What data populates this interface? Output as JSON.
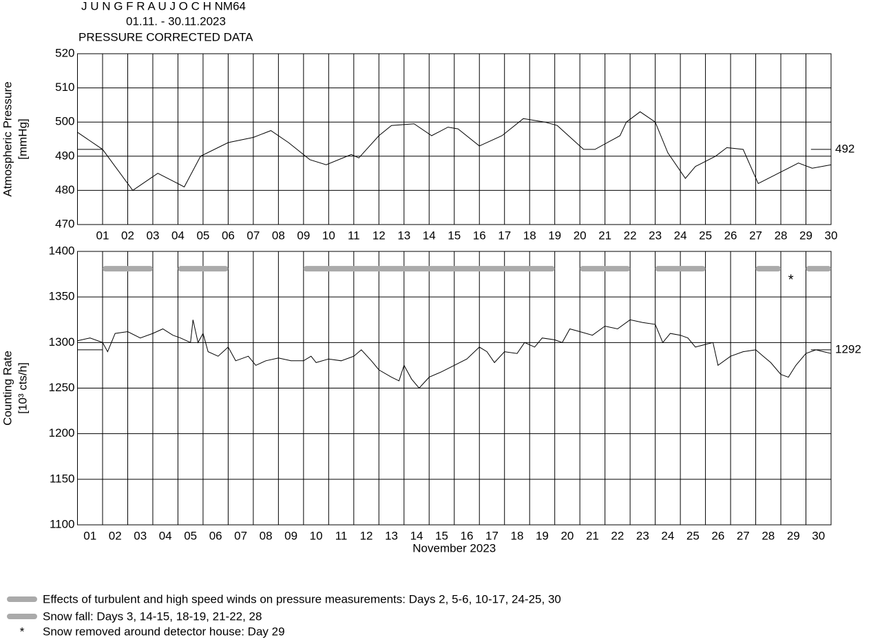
{
  "chart_data": [
    {
      "type": "line",
      "title": "J U N G F R A U J O C H  NM64",
      "subtitle": "01.11. - 30.11.2023",
      "annotation": "PRESSURE CORRECTED DATA",
      "ylabel": [
        "Atmospheric Pressure",
        "[mmHg]"
      ],
      "xlim": [
        0,
        30
      ],
      "ylim": [
        470,
        520
      ],
      "yticks": [
        470,
        480,
        490,
        500,
        510,
        520
      ],
      "xticks": [
        {
          "value": 1,
          "label": "01"
        },
        {
          "value": 2,
          "label": "02"
        },
        {
          "value": 3,
          "label": "03"
        },
        {
          "value": 4,
          "label": "04"
        },
        {
          "value": 5,
          "label": "05"
        },
        {
          "value": 6,
          "label": "06"
        },
        {
          "value": 7,
          "label": "07"
        },
        {
          "value": 8,
          "label": "08"
        },
        {
          "value": 9,
          "label": "09"
        },
        {
          "value": 10,
          "label": "10"
        },
        {
          "value": 11,
          "label": "11"
        },
        {
          "value": 12,
          "label": "12"
        },
        {
          "value": 13,
          "label": "13"
        },
        {
          "value": 14,
          "label": "14"
        },
        {
          "value": 15,
          "label": "15"
        },
        {
          "value": 16,
          "label": "16"
        },
        {
          "value": 17,
          "label": "17"
        },
        {
          "value": 18,
          "label": "18"
        },
        {
          "value": 19,
          "label": "19"
        },
        {
          "value": 20,
          "label": "20"
        },
        {
          "value": 21,
          "label": "21"
        },
        {
          "value": 22,
          "label": "22"
        },
        {
          "value": 23,
          "label": "23"
        },
        {
          "value": 24,
          "label": "24"
        },
        {
          "value": 25,
          "label": "25"
        },
        {
          "value": 26,
          "label": "26"
        },
        {
          "value": 27,
          "label": "27"
        },
        {
          "value": 28,
          "label": "28"
        },
        {
          "value": 29,
          "label": "29"
        },
        {
          "value": 30,
          "label": "30"
        }
      ],
      "grid": true,
      "reference": 492,
      "series": [
        {
          "color": "#000000",
          "x": [
            0,
            1,
            2.2,
            3,
            3.2,
            4,
            4.25,
            4.9,
            6,
            7,
            7.7,
            8.4,
            9.25,
            9.9,
            10.9,
            11.2,
            12,
            12.5,
            13.4,
            14.1,
            14.75,
            15.15,
            16,
            16.9,
            17.75,
            18.6,
            19.1,
            20.15,
            20.6,
            21.6,
            21.85,
            22.4,
            23,
            23.5,
            24.2,
            24.6,
            25.4,
            25.85,
            26.5,
            27.1,
            27.9,
            28.7,
            29.25,
            30
          ],
          "values": [
            497,
            492,
            480,
            484,
            485,
            482,
            481,
            490,
            494,
            495.5,
            497.5,
            494,
            489,
            487.5,
            490.5,
            489.5,
            496,
            499,
            499.5,
            496,
            498.5,
            498,
            493,
            496,
            501,
            500,
            499,
            492,
            492,
            496,
            500,
            503,
            500,
            491,
            483.5,
            487,
            490,
            492.5,
            492,
            482,
            485,
            488,
            486.5,
            487.5
          ]
        }
      ]
    },
    {
      "type": "line",
      "ylabel": [
        "Counting Rate",
        "[10³ cts/h]"
      ],
      "xlabel": "November 2023",
      "xlim": [
        0,
        30
      ],
      "ylim": [
        1100,
        1400
      ],
      "yticks": [
        1100,
        1150,
        1200,
        1250,
        1300,
        1350,
        1400
      ],
      "xticks": [
        {
          "value": 0.5,
          "label": "01"
        },
        {
          "value": 1.5,
          "label": "02"
        },
        {
          "value": 2.5,
          "label": "03"
        },
        {
          "value": 3.5,
          "label": "04"
        },
        {
          "value": 4.5,
          "label": "05"
        },
        {
          "value": 5.5,
          "label": "06"
        },
        {
          "value": 6.5,
          "label": "07"
        },
        {
          "value": 7.5,
          "label": "08"
        },
        {
          "value": 8.5,
          "label": "09"
        },
        {
          "value": 9.5,
          "label": "10"
        },
        {
          "value": 10.5,
          "label": "11"
        },
        {
          "value": 11.5,
          "label": "12"
        },
        {
          "value": 12.5,
          "label": "13"
        },
        {
          "value": 13.5,
          "label": "14"
        },
        {
          "value": 14.5,
          "label": "15"
        },
        {
          "value": 15.5,
          "label": "16"
        },
        {
          "value": 16.5,
          "label": "17"
        },
        {
          "value": 17.5,
          "label": "18"
        },
        {
          "value": 18.5,
          "label": "19"
        },
        {
          "value": 19.5,
          "label": "20"
        },
        {
          "value": 20.5,
          "label": "21"
        },
        {
          "value": 21.5,
          "label": "22"
        },
        {
          "value": 22.5,
          "label": "23"
        },
        {
          "value": 23.5,
          "label": "24"
        },
        {
          "value": 24.5,
          "label": "25"
        },
        {
          "value": 25.5,
          "label": "26"
        },
        {
          "value": 26.5,
          "label": "27"
        },
        {
          "value": 27.5,
          "label": "28"
        },
        {
          "value": 28.5,
          "label": "29"
        },
        {
          "value": 29.5,
          "label": "30"
        }
      ],
      "grid": true,
      "reference": 1292,
      "bands": {
        "color": "#aaaaaa",
        "y": 1381,
        "spans": [
          [
            1,
            3
          ],
          [
            4,
            6
          ],
          [
            9,
            19
          ],
          [
            20,
            22
          ],
          [
            23,
            25
          ],
          [
            27,
            28
          ],
          [
            29,
            30
          ]
        ]
      },
      "markers": [
        {
          "x": 28.4,
          "y": 1371
        }
      ],
      "series": [
        {
          "color": "#000000",
          "x": [
            0,
            0.5,
            1,
            1.2,
            1.5,
            2,
            2.5,
            3,
            3.4,
            3.8,
            4.1,
            4.5,
            4.6,
            4.8,
            5,
            5.2,
            5.6,
            6,
            6.3,
            6.8,
            7.1,
            7.5,
            8,
            8.5,
            9,
            9.3,
            9.5,
            10,
            10.5,
            11,
            11.3,
            11.7,
            12,
            12.5,
            12.8,
            13,
            13.3,
            13.6,
            14,
            14.5,
            15,
            15.5,
            16,
            16.3,
            16.6,
            17,
            17.5,
            17.8,
            18.2,
            18.5,
            19,
            19.3,
            19.6,
            20,
            20.5,
            21,
            21.5,
            22,
            22.5,
            23,
            23.3,
            23.6,
            24,
            24.3,
            24.6,
            25,
            25.3,
            25.5,
            26,
            26.5,
            27,
            27.3,
            27.6,
            28,
            28.3,
            28.6,
            29,
            29.4,
            29.7,
            30
          ],
          "values": [
            1302,
            1305,
            1300,
            1290,
            1310,
            1312,
            1305,
            1310,
            1315,
            1308,
            1305,
            1300,
            1325,
            1300,
            1310,
            1290,
            1285,
            1295,
            1280,
            1285,
            1275,
            1280,
            1283,
            1280,
            1280,
            1285,
            1278,
            1282,
            1280,
            1285,
            1292,
            1280,
            1270,
            1262,
            1258,
            1275,
            1260,
            1250,
            1262,
            1268,
            1275,
            1282,
            1295,
            1290,
            1278,
            1290,
            1288,
            1300,
            1295,
            1305,
            1303,
            1300,
            1315,
            1312,
            1308,
            1318,
            1315,
            1325,
            1322,
            1320,
            1300,
            1310,
            1308,
            1305,
            1295,
            1298,
            1300,
            1275,
            1285,
            1290,
            1292,
            1285,
            1278,
            1265,
            1262,
            1275,
            1288,
            1292,
            1290,
            1288
          ]
        }
      ]
    }
  ],
  "legend": [
    "Effects of turbulent and high speed winds on pressure measurements: Days 2, 5-6, 10-17, 24-25, 30",
    "Snow fall: Days 3, 14-15, 18-19, 21-22, 28",
    "Snow removed around detector house: Day 29"
  ]
}
